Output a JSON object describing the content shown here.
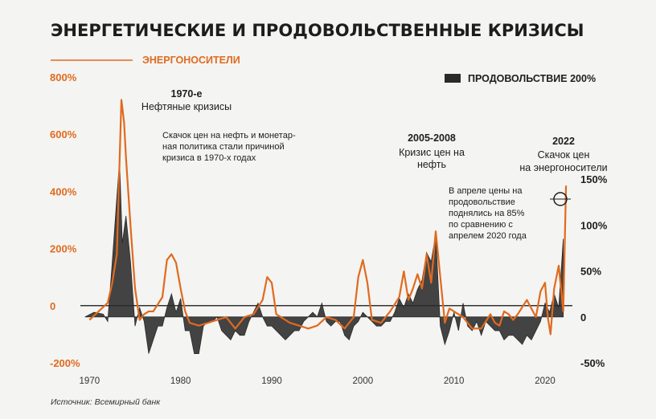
{
  "title": "ЭНЕРГЕТИЧЕСКИЕ И ПРОДОВОЛЬСТВЕННЫЕ КРИЗИСЫ",
  "source": "Источник: Всемирный банк",
  "colors": {
    "energy": "#e06a1f",
    "food": "#2a2a2a",
    "text": "#1d1d1d"
  },
  "chart_data": {
    "type": "line",
    "x_ticks": [
      "1970",
      "1980",
      "1990",
      "2000",
      "2010",
      "2020"
    ],
    "xlim": [
      1969,
      2023
    ],
    "y_left": {
      "ticks": [
        "800%",
        "600%",
        "400%",
        "200%",
        "0",
        "-200%"
      ],
      "ylim": [
        -200,
        800
      ]
    },
    "y_right": {
      "ticks": [
        "150%",
        "100%",
        "50%",
        "0",
        "-50%"
      ],
      "ylim": [
        -50,
        200
      ]
    },
    "series": [
      {
        "name": "ЭНЕРГОНОСИТЕЛИ",
        "axis": "left",
        "x": [
          1970,
          1971,
          1972,
          1972.5,
          1973,
          1973.5,
          1973.8,
          1974,
          1974.5,
          1975,
          1975.5,
          1976,
          1976.5,
          1977,
          1978,
          1978.5,
          1979,
          1979.5,
          1980,
          1980.5,
          1981,
          1982,
          1983,
          1984,
          1985,
          1986,
          1986.5,
          1987,
          1988,
          1989,
          1989.5,
          1990,
          1990.5,
          1991,
          1992,
          1993,
          1994,
          1995,
          1996,
          1997,
          1998,
          1999,
          1999.5,
          2000,
          2000.5,
          2001,
          2002,
          2003,
          2004,
          2004.5,
          2005,
          2005.5,
          2006,
          2006.5,
          2007,
          2007.5,
          2008,
          2008.5,
          2009,
          2009.5,
          2010,
          2011,
          2012,
          2013,
          2014,
          2014.5,
          2015,
          2015.5,
          2016,
          2016.5,
          2017,
          2018,
          2019,
          2019.5,
          2020,
          2020.3,
          2020.6,
          2021,
          2021.5,
          2022,
          2022.3
        ],
        "values": [
          -50,
          -20,
          10,
          80,
          180,
          720,
          640,
          520,
          280,
          60,
          -50,
          -30,
          -20,
          -20,
          30,
          160,
          180,
          150,
          60,
          -20,
          -60,
          -70,
          -60,
          -50,
          -40,
          -80,
          -60,
          -40,
          -30,
          20,
          100,
          80,
          -30,
          -40,
          -60,
          -70,
          -80,
          -70,
          -40,
          -50,
          -80,
          -40,
          100,
          160,
          80,
          -50,
          -60,
          -20,
          30,
          120,
          20,
          60,
          110,
          60,
          180,
          80,
          260,
          100,
          -60,
          -10,
          -20,
          -40,
          -80,
          -80,
          -30,
          -60,
          -70,
          -20,
          -30,
          -50,
          -30,
          20,
          -40,
          50,
          80,
          -40,
          -100,
          60,
          140,
          -20,
          420
        ]
      },
      {
        "name": "ПРОДОВОЛЬСТВИЕ 200%",
        "axis": "right",
        "x": [
          1969.5,
          1970.5,
          1971.5,
          1972,
          1972.5,
          1973,
          1973.3,
          1973.6,
          1974,
          1974.5,
          1975,
          1975.5,
          1976,
          1976.5,
          1977,
          1977.5,
          1978,
          1978.5,
          1979,
          1979.5,
          1980,
          1980.5,
          1981,
          1981.5,
          1982,
          1982.5,
          1983,
          1983.5,
          1984,
          1984.5,
          1985,
          1985.5,
          1986,
          1986.5,
          1987,
          1987.5,
          1988,
          1988.5,
          1989,
          1989.5,
          1990,
          1990.5,
          1991,
          1991.5,
          1992,
          1992.5,
          1993,
          1993.5,
          1994,
          1994.5,
          1995,
          1995.5,
          1996,
          1996.5,
          1997,
          1997.5,
          1998,
          1998.5,
          1999,
          1999.5,
          2000,
          2000.5,
          2001,
          2001.5,
          2002,
          2002.5,
          2003,
          2003.5,
          2004,
          2004.5,
          2005,
          2005.5,
          2006,
          2006.5,
          2007,
          2007.5,
          2008,
          2008.5,
          2009,
          2009.5,
          2010,
          2010.5,
          2011,
          2011.5,
          2012,
          2012.5,
          2013,
          2013.5,
          2014,
          2014.5,
          2015,
          2015.5,
          2016,
          2016.5,
          2017,
          2017.5,
          2018,
          2018.5,
          2019,
          2019.5,
          2020,
          2020.5,
          2021,
          2021.5,
          2022
        ],
        "values": [
          0,
          5,
          3,
          -5,
          60,
          130,
          170,
          80,
          110,
          60,
          -10,
          10,
          -5,
          -40,
          -25,
          -10,
          -10,
          10,
          25,
          5,
          20,
          -15,
          -15,
          -40,
          -40,
          -10,
          -5,
          -5,
          0,
          -15,
          -20,
          -25,
          -15,
          -20,
          -20,
          -5,
          5,
          15,
          0,
          -10,
          -10,
          -15,
          -20,
          -25,
          -20,
          -15,
          -15,
          -5,
          0,
          5,
          0,
          15,
          -5,
          -10,
          -5,
          -5,
          -20,
          -25,
          -10,
          -5,
          5,
          0,
          -5,
          -10,
          -10,
          -5,
          -5,
          5,
          20,
          10,
          25,
          15,
          30,
          40,
          70,
          60,
          90,
          -10,
          -30,
          -15,
          5,
          -15,
          15,
          -10,
          -15,
          -5,
          -20,
          -5,
          -10,
          -15,
          -15,
          -25,
          -20,
          -20,
          -25,
          -30,
          -20,
          -25,
          -15,
          -5,
          15,
          5,
          25,
          10,
          85
        ]
      }
    ]
  },
  "annotations": {
    "a1970_title": "1970-е",
    "a1970_sub": "Нефтяные кризисы",
    "a1970_text": [
      "Скачок цен на нефть и монетар-",
      "ная политика стали причиной",
      "кризиса в 1970-х годах"
    ],
    "a2005_title": "2005-2008",
    "a2005_sub": [
      "Кризис цен на",
      "нефть"
    ],
    "a2022_title": "2022",
    "a2022_sub": [
      "Скачок цен",
      "на энергоносители"
    ],
    "a2022_text": [
      "В апреле цены на",
      "продовольствие",
      "поднялись на 85%",
      "по сравнению с",
      "апрелем 2020 года"
    ]
  }
}
